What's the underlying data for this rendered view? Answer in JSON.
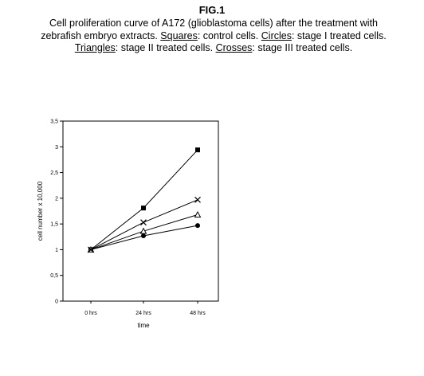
{
  "figure": {
    "label": "FIG.1",
    "caption": {
      "intro": "Cell proliferation curve of A172 (glioblastoma cells) after the treatment with zebrafish embryo extracts.",
      "squares_key": "Squares",
      "squares_desc": ": control cells.",
      "circles_key": "Circles",
      "circles_desc": ": stage I treated cells.",
      "triangles_key": "Triangles",
      "triangles_desc": ": stage II treated cells.",
      "crosses_key": "Crosses",
      "crosses_desc": ": stage III treated cells."
    }
  },
  "chart_data": {
    "type": "line",
    "x": [
      "0 hrs",
      "24 hrs",
      "48 hrs"
    ],
    "xlabel": "time",
    "ylabel": "cell number x 10,000",
    "ylim": [
      0,
      3.5
    ],
    "yticks": [
      "0",
      "0,5",
      "1",
      "1,5",
      "2",
      "2,5",
      "3",
      "3,5"
    ],
    "ytick_values": [
      0,
      0.5,
      1,
      1.5,
      2,
      2.5,
      3,
      3.5
    ],
    "grid": false,
    "legend": "none",
    "series": [
      {
        "marker": "square",
        "values": [
          1.0,
          1.81,
          2.94
        ]
      },
      {
        "marker": "circle",
        "values": [
          1.0,
          1.27,
          1.47
        ]
      },
      {
        "marker": "triangle",
        "values": [
          1.0,
          1.36,
          1.68
        ]
      },
      {
        "marker": "cross",
        "values": [
          1.0,
          1.53,
          1.97
        ]
      }
    ]
  }
}
